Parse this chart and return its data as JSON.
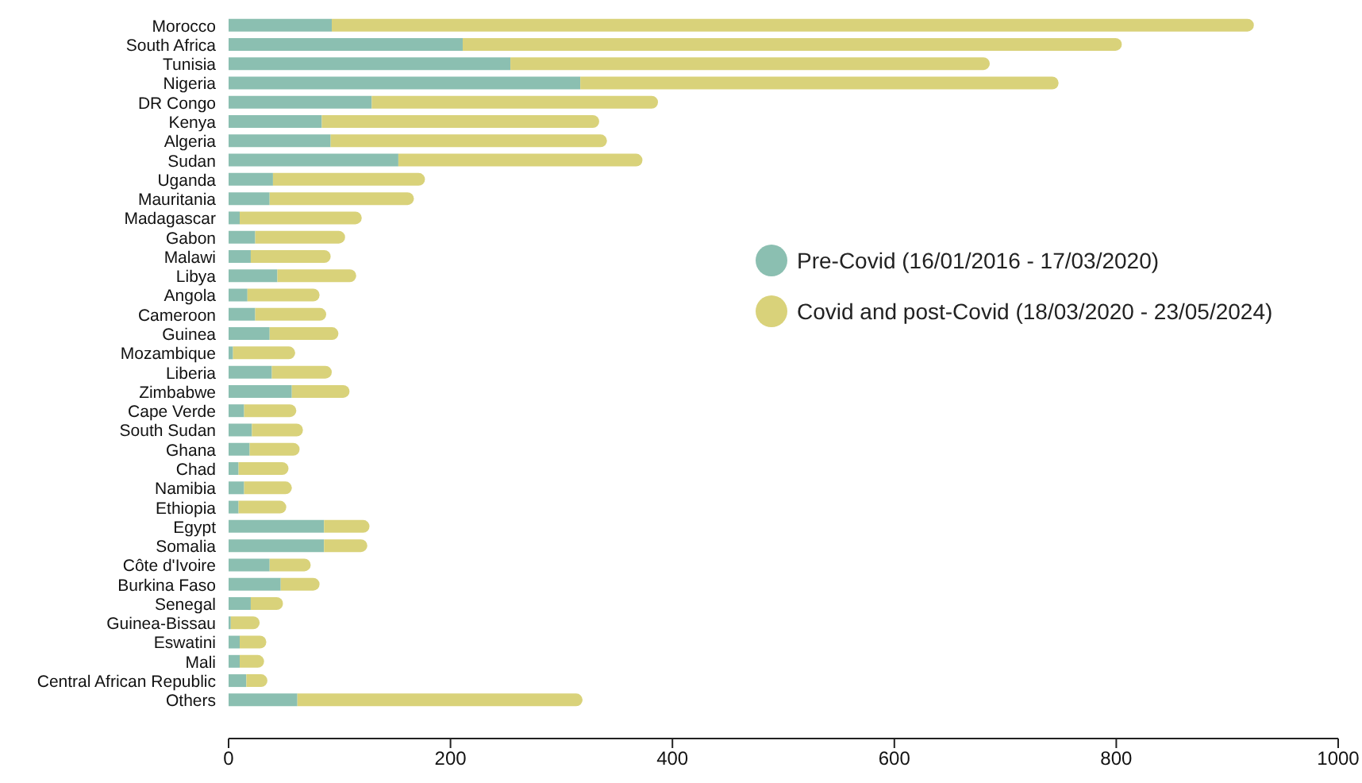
{
  "chart_data": {
    "type": "bar",
    "orientation": "horizontal",
    "stacked": true,
    "categories": [
      "Morocco",
      "South Africa",
      "Tunisia",
      "Nigeria",
      "DR Congo",
      "Kenya",
      "Algeria",
      "Sudan",
      "Uganda",
      "Mauritania",
      "Madagascar",
      "Gabon",
      "Malawi",
      "Libya",
      "Angola",
      "Cameroon",
      "Guinea",
      "Mozambique",
      "Liberia",
      "Zimbabwe",
      "Cape Verde",
      "South Sudan",
      "Ghana",
      "Chad",
      "Namibia",
      "Ethiopia",
      "Egypt",
      "Somalia",
      "Côte d'Ivoire",
      "Burkina Faso",
      "Senegal",
      "Guinea-Bissau",
      "Eswatini",
      "Mali",
      "Central African Republic",
      "Others"
    ],
    "series": [
      {
        "name": "Pre-Covid (16/01/2016 - 17/03/2020)",
        "color": "#8bbfb1",
        "values": [
          93,
          211,
          254,
          317,
          129,
          84,
          92,
          153,
          40,
          37,
          10,
          24,
          20,
          44,
          17,
          24,
          37,
          4,
          39,
          57,
          14,
          21,
          19,
          9,
          14,
          9,
          86,
          86,
          37,
          47,
          20,
          2,
          10,
          10,
          16,
          62
        ]
      },
      {
        "name": "Covid and post-Covid (18/03/2020 - 23/05/2024)",
        "color": "#d9d27a",
        "values": [
          831,
          594,
          432,
          431,
          258,
          250,
          249,
          220,
          137,
          130,
          110,
          81,
          72,
          71,
          65,
          64,
          62,
          56,
          54,
          52,
          47,
          46,
          45,
          45,
          43,
          43,
          41,
          39,
          37,
          35,
          29,
          26,
          24,
          22,
          19,
          257
        ]
      }
    ],
    "xlim": [
      0,
      1000
    ],
    "xticks": [
      0,
      200,
      400,
      600,
      800,
      1000
    ],
    "legend": "right",
    "grid": false
  }
}
